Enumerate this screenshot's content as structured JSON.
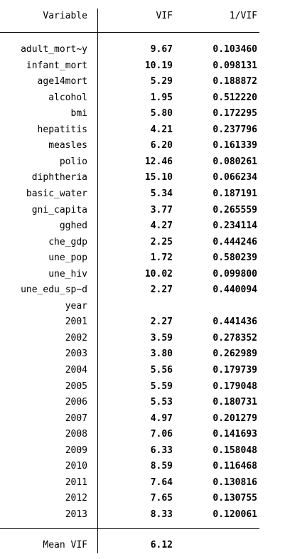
{
  "headers": {
    "variable": "Variable",
    "vif": "VIF",
    "inv_vif": "1/VIF"
  },
  "rows": [
    {
      "variable": "adult_mort~y",
      "vif": "9.67",
      "inv_vif": "0.103460"
    },
    {
      "variable": "infant_mort",
      "vif": "10.19",
      "inv_vif": "0.098131"
    },
    {
      "variable": "age14mort",
      "vif": "5.29",
      "inv_vif": "0.188872"
    },
    {
      "variable": "alcohol",
      "vif": "1.95",
      "inv_vif": "0.512220"
    },
    {
      "variable": "bmi",
      "vif": "5.80",
      "inv_vif": "0.172295"
    },
    {
      "variable": "hepatitis",
      "vif": "4.21",
      "inv_vif": "0.237796"
    },
    {
      "variable": "measles",
      "vif": "6.20",
      "inv_vif": "0.161339"
    },
    {
      "variable": "polio",
      "vif": "12.46",
      "inv_vif": "0.080261"
    },
    {
      "variable": "diphtheria",
      "vif": "15.10",
      "inv_vif": "0.066234"
    },
    {
      "variable": "basic_water",
      "vif": "5.34",
      "inv_vif": "0.187191"
    },
    {
      "variable": "gni_capita",
      "vif": "3.77",
      "inv_vif": "0.265559"
    },
    {
      "variable": "gghed",
      "vif": "4.27",
      "inv_vif": "0.234114"
    },
    {
      "variable": "che_gdp",
      "vif": "2.25",
      "inv_vif": "0.444246"
    },
    {
      "variable": "une_pop",
      "vif": "1.72",
      "inv_vif": "0.580239"
    },
    {
      "variable": "une_hiv",
      "vif": "10.02",
      "inv_vif": "0.099800"
    },
    {
      "variable": "une_edu_sp~d",
      "vif": "2.27",
      "inv_vif": "0.440094"
    },
    {
      "variable": "year",
      "vif": "",
      "inv_vif": ""
    },
    {
      "variable": "2001",
      "vif": "2.27",
      "inv_vif": "0.441436"
    },
    {
      "variable": "2002",
      "vif": "3.59",
      "inv_vif": "0.278352"
    },
    {
      "variable": "2003",
      "vif": "3.80",
      "inv_vif": "0.262989"
    },
    {
      "variable": "2004",
      "vif": "5.56",
      "inv_vif": "0.179739"
    },
    {
      "variable": "2005",
      "vif": "5.59",
      "inv_vif": "0.179048"
    },
    {
      "variable": "2006",
      "vif": "5.53",
      "inv_vif": "0.180731"
    },
    {
      "variable": "2007",
      "vif": "4.97",
      "inv_vif": "0.201279"
    },
    {
      "variable": "2008",
      "vif": "7.06",
      "inv_vif": "0.141693"
    },
    {
      "variable": "2009",
      "vif": "6.33",
      "inv_vif": "0.158048"
    },
    {
      "variable": "2010",
      "vif": "8.59",
      "inv_vif": "0.116468"
    },
    {
      "variable": "2011",
      "vif": "7.64",
      "inv_vif": "0.130816"
    },
    {
      "variable": "2012",
      "vif": "7.65",
      "inv_vif": "0.130755"
    },
    {
      "variable": "2013",
      "vif": "8.33",
      "inv_vif": "0.120061"
    }
  ],
  "footer": {
    "label": "Mean VIF",
    "vif": "6.12"
  }
}
